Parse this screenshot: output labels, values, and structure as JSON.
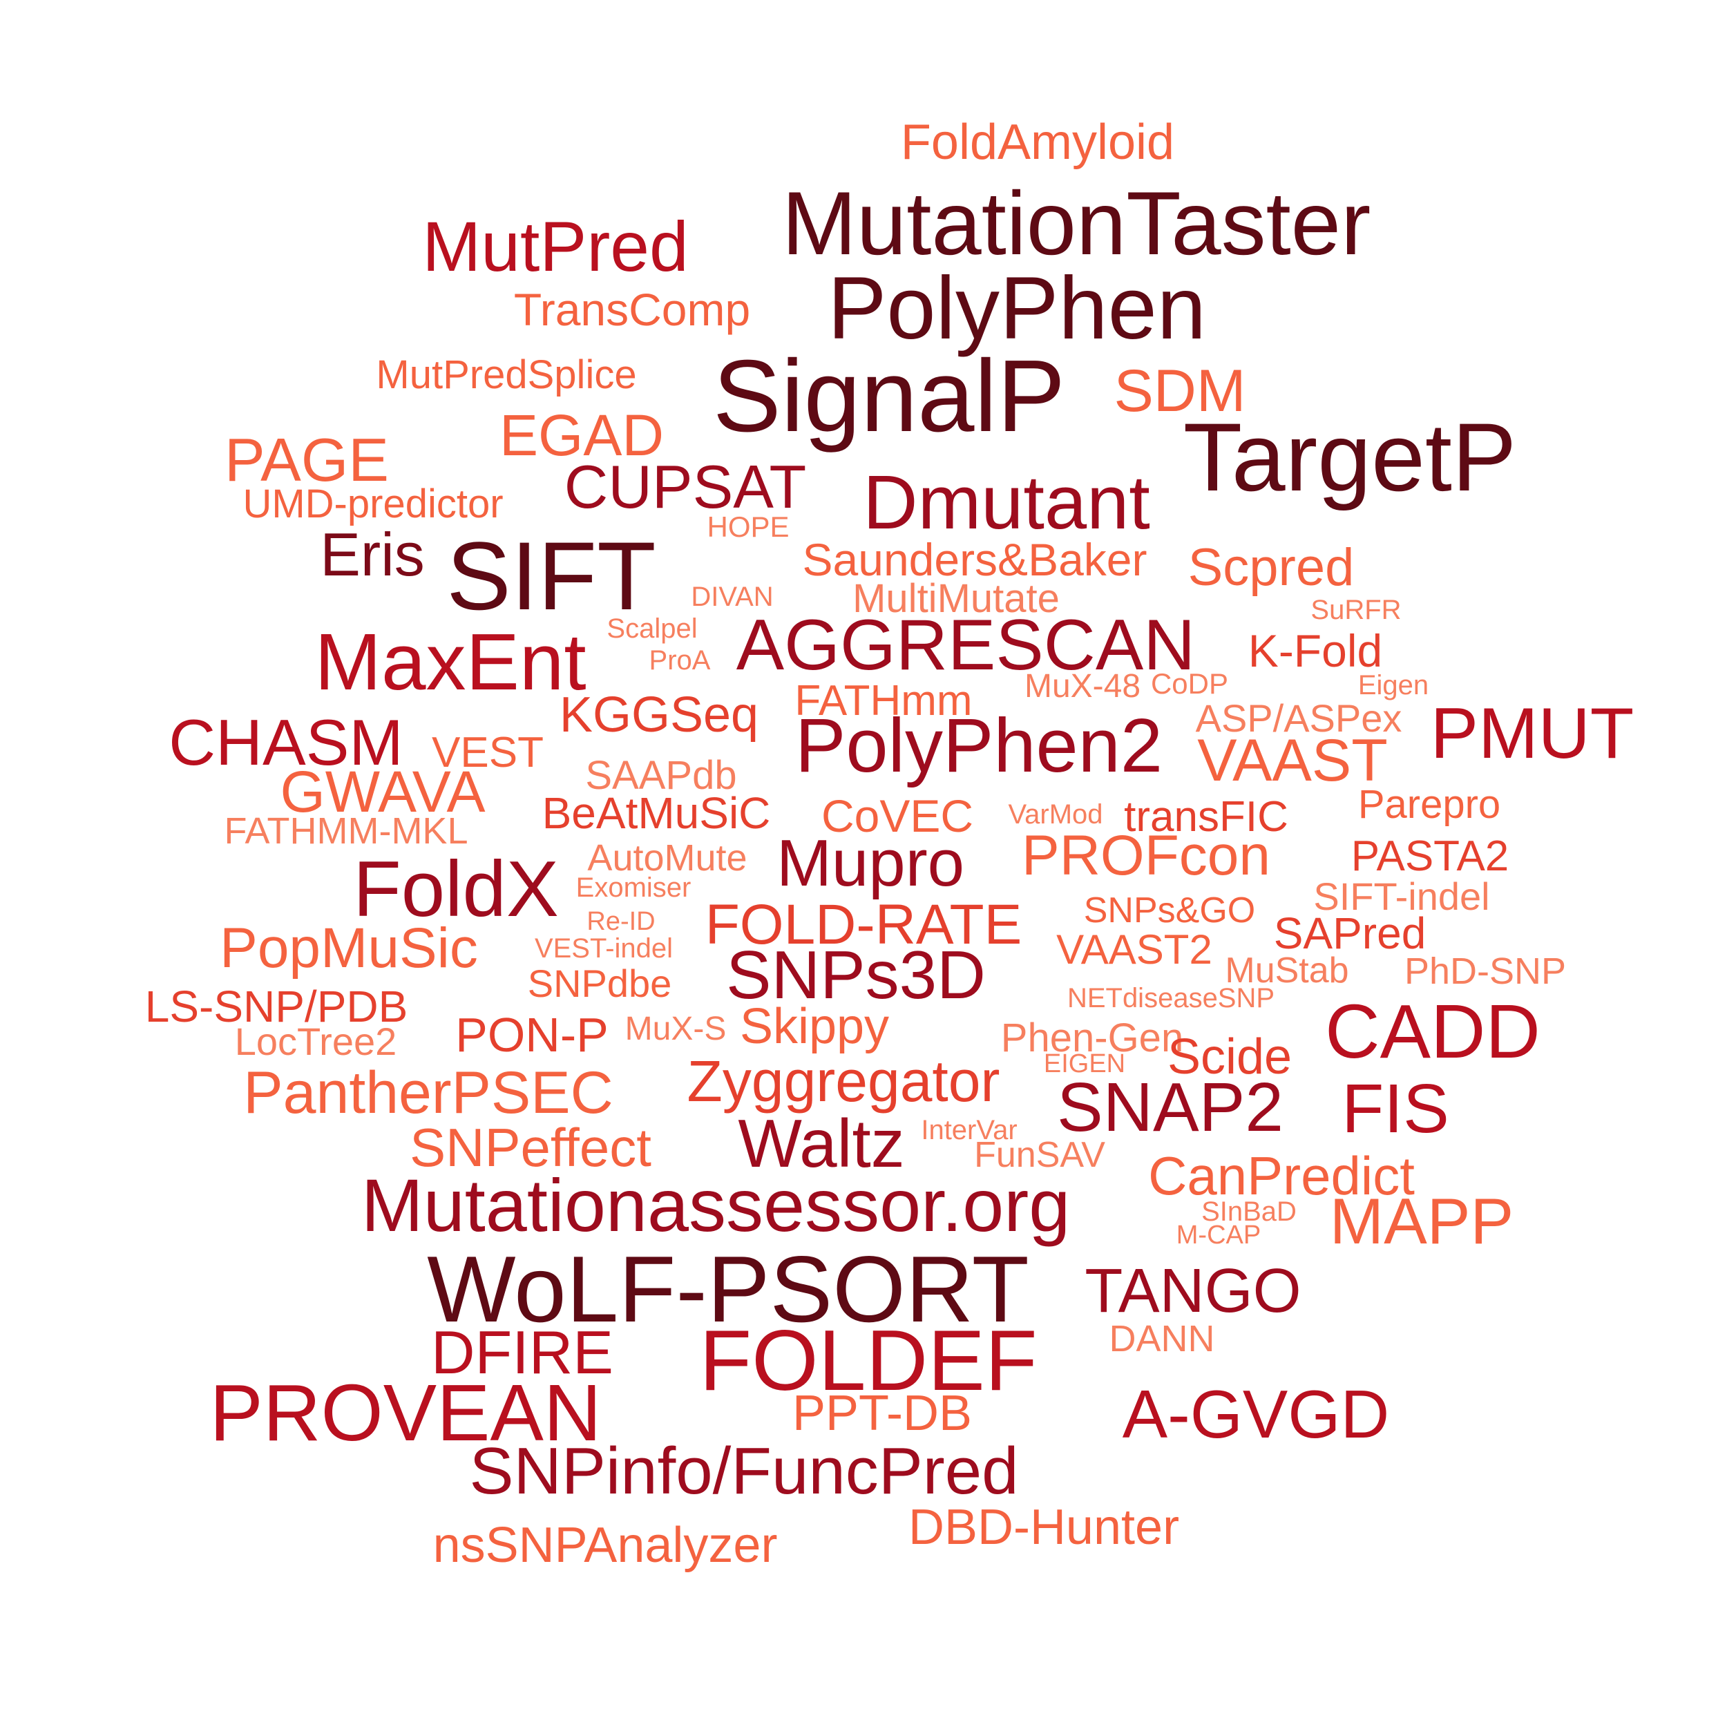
{
  "palette": {
    "darkest": "#5e0a14",
    "dark": "#9e0c1e",
    "medium": "#be1426",
    "mid_light": "#e5402d",
    "light": "#f4623f",
    "lightest": "#f67f5e"
  },
  "words": [
    {
      "id": "w0",
      "text": "FoldAmyloid",
      "color": "#f4623f"
    },
    {
      "id": "w1",
      "text": "MutationTaster",
      "color": "#5e0a14"
    },
    {
      "id": "w2",
      "text": "MutPred",
      "color": "#b9101f"
    },
    {
      "id": "w3",
      "text": "PolyPhen",
      "color": "#5e0a14"
    },
    {
      "id": "w4",
      "text": "TransComp",
      "color": "#f4623f"
    },
    {
      "id": "w5",
      "text": "SignalP",
      "color": "#5e0a14"
    },
    {
      "id": "w6",
      "text": "MutPredSplice",
      "color": "#f4623f"
    },
    {
      "id": "w7",
      "text": "SDM",
      "color": "#f4623f"
    },
    {
      "id": "w8",
      "text": "TargetP",
      "color": "#5e0a14"
    },
    {
      "id": "w9",
      "text": "EGAD",
      "color": "#f4623f"
    },
    {
      "id": "w10",
      "text": "PAGE",
      "color": "#f4623f"
    },
    {
      "id": "w11",
      "text": "CUPSAT",
      "color": "#9e0c1e"
    },
    {
      "id": "w12",
      "text": "Dmutant",
      "color": "#9e0c1e"
    },
    {
      "id": "w13",
      "text": "UMD-predictor",
      "color": "#f4623f"
    },
    {
      "id": "w14",
      "text": "HOPE",
      "color": "#f67f5e"
    },
    {
      "id": "w15",
      "text": "Eris",
      "color": "#7c0a18"
    },
    {
      "id": "w16",
      "text": "SIFT",
      "color": "#5e0a14"
    },
    {
      "id": "w17",
      "text": "Saunders&Baker",
      "color": "#f4623f"
    },
    {
      "id": "w18",
      "text": "Scpred",
      "color": "#f4623f"
    },
    {
      "id": "w19",
      "text": "DIVAN",
      "color": "#f67f5e"
    },
    {
      "id": "w20",
      "text": "MultiMutate",
      "color": "#f67f5e"
    },
    {
      "id": "w21",
      "text": "SuRFR",
      "color": "#f67f5e"
    },
    {
      "id": "w22",
      "text": "Scalpel",
      "color": "#f67f5e"
    },
    {
      "id": "w23",
      "text": "MaxEnt",
      "color": "#b9101f"
    },
    {
      "id": "w24",
      "text": "AGGRESCAN",
      "color": "#9e0c1e"
    },
    {
      "id": "w25",
      "text": "K-Fold",
      "color": "#e5402d"
    },
    {
      "id": "w26",
      "text": "ProA",
      "color": "#f67f5e"
    },
    {
      "id": "w27",
      "text": "MuX-48",
      "color": "#f67f5e"
    },
    {
      "id": "w28",
      "text": "CoDP",
      "color": "#f67f5e"
    },
    {
      "id": "w29",
      "text": "Eigen",
      "color": "#f67f5e"
    },
    {
      "id": "w30",
      "text": "KGGSeq",
      "color": "#e5402d"
    },
    {
      "id": "w31",
      "text": "FATHmm",
      "color": "#f4623f"
    },
    {
      "id": "w32",
      "text": "ASP/ASPex",
      "color": "#f67f5e"
    },
    {
      "id": "w33",
      "text": "PMUT",
      "color": "#b9101f"
    },
    {
      "id": "w34",
      "text": "CHASM",
      "color": "#b9101f"
    },
    {
      "id": "w35",
      "text": "VEST",
      "color": "#f4623f"
    },
    {
      "id": "w36",
      "text": "PolyPhen2",
      "color": "#9e0c1e"
    },
    {
      "id": "w37",
      "text": "VAAST",
      "color": "#f4623f"
    },
    {
      "id": "w38",
      "text": "SAAPdb",
      "color": "#f67f5e"
    },
    {
      "id": "w39",
      "text": "GWAVA",
      "color": "#f4623f"
    },
    {
      "id": "w40",
      "text": "BeAtMuSiC",
      "color": "#e5402d"
    },
    {
      "id": "w41",
      "text": "CoVEC",
      "color": "#f4623f"
    },
    {
      "id": "w42",
      "text": "VarMod",
      "color": "#f67f5e"
    },
    {
      "id": "w43",
      "text": "transFIC",
      "color": "#e5402d"
    },
    {
      "id": "w44",
      "text": "Parepro",
      "color": "#f4623f"
    },
    {
      "id": "w45",
      "text": "FATHMM-MKL",
      "color": "#f67f5e"
    },
    {
      "id": "w46",
      "text": "AutoMute",
      "color": "#f67f5e"
    },
    {
      "id": "w47",
      "text": "Mupro",
      "color": "#9e0c1e"
    },
    {
      "id": "w48",
      "text": "PROFcon",
      "color": "#f4623f"
    },
    {
      "id": "w49",
      "text": "PASTA2",
      "color": "#e5402d"
    },
    {
      "id": "w50",
      "text": "FoldX",
      "color": "#9e0c1e"
    },
    {
      "id": "w51",
      "text": "Exomiser",
      "color": "#f67f5e"
    },
    {
      "id": "w52",
      "text": "SIFT-indel",
      "color": "#f67f5e"
    },
    {
      "id": "w53",
      "text": "Re-ID",
      "color": "#f67f5e"
    },
    {
      "id": "w54",
      "text": "FOLD-RATE",
      "color": "#e5402d"
    },
    {
      "id": "w55",
      "text": "SNPs&GO",
      "color": "#f4623f"
    },
    {
      "id": "w56",
      "text": "SAPred",
      "color": "#e5402d"
    },
    {
      "id": "w57",
      "text": "PopMuSic",
      "color": "#f4623f"
    },
    {
      "id": "w58",
      "text": "VEST-indel",
      "color": "#f67f5e"
    },
    {
      "id": "w59",
      "text": "SNPs3D",
      "color": "#9e0c1e"
    },
    {
      "id": "w60",
      "text": "VAAST2",
      "color": "#f4623f"
    },
    {
      "id": "w61",
      "text": "MuStab",
      "color": "#f67f5e"
    },
    {
      "id": "w62",
      "text": "PhD-SNP",
      "color": "#f67f5e"
    },
    {
      "id": "w63",
      "text": "SNPdbe",
      "color": "#f4623f"
    },
    {
      "id": "w64",
      "text": "LS-SNP/PDB",
      "color": "#e5402d"
    },
    {
      "id": "w65",
      "text": "NETdiseaseSNP",
      "color": "#f67f5e"
    },
    {
      "id": "w66",
      "text": "CADD",
      "color": "#b9101f"
    },
    {
      "id": "w67",
      "text": "PON-P",
      "color": "#e5402d"
    },
    {
      "id": "w68",
      "text": "MuX-S",
      "color": "#f67f5e"
    },
    {
      "id": "w69",
      "text": "Skippy",
      "color": "#f4623f"
    },
    {
      "id": "w70",
      "text": "Phen-Gen",
      "color": "#f67f5e"
    },
    {
      "id": "w71",
      "text": "LocTree2",
      "color": "#f67f5e"
    },
    {
      "id": "w72",
      "text": "Scide",
      "color": "#e5402d"
    },
    {
      "id": "w73",
      "text": "EIGEN",
      "color": "#f67f5e"
    },
    {
      "id": "w74",
      "text": "Zyggregator",
      "color": "#e5402d"
    },
    {
      "id": "w75",
      "text": "PantherPSEC",
      "color": "#f4623f"
    },
    {
      "id": "w76",
      "text": "SNAP2",
      "color": "#9e0c1e"
    },
    {
      "id": "w77",
      "text": "FIS",
      "color": "#b9101f"
    },
    {
      "id": "w78",
      "text": "SNPeffect",
      "color": "#f4623f"
    },
    {
      "id": "w79",
      "text": "Waltz",
      "color": "#9e0c1e"
    },
    {
      "id": "w80",
      "text": "InterVar",
      "color": "#f67f5e"
    },
    {
      "id": "w81",
      "text": "FunSAV",
      "color": "#f67f5e"
    },
    {
      "id": "w82",
      "text": "CanPredict",
      "color": "#f4623f"
    },
    {
      "id": "w83",
      "text": "Mutationassessor.org",
      "color": "#9e0c1e"
    },
    {
      "id": "w84",
      "text": "SInBaD",
      "color": "#f67f5e"
    },
    {
      "id": "w85",
      "text": "MAPP",
      "color": "#f4623f"
    },
    {
      "id": "w86",
      "text": "M-CAP",
      "color": "#f67f5e"
    },
    {
      "id": "w87",
      "text": "WoLF-PSORT",
      "color": "#5e0a14"
    },
    {
      "id": "w88",
      "text": "TANGO",
      "color": "#9e0c1e"
    },
    {
      "id": "w89",
      "text": "DFIRE",
      "color": "#b9101f"
    },
    {
      "id": "w90",
      "text": "FOLDEF",
      "color": "#b9101f"
    },
    {
      "id": "w91",
      "text": "DANN",
      "color": "#f67f5e"
    },
    {
      "id": "w92",
      "text": "PROVEAN",
      "color": "#b9101f"
    },
    {
      "id": "w93",
      "text": "PPT-DB",
      "color": "#f4623f"
    },
    {
      "id": "w94",
      "text": "A-GVGD",
      "color": "#b9101f"
    },
    {
      "id": "w95",
      "text": "SNPinfo/FuncPred",
      "color": "#9e0c1e"
    },
    {
      "id": "w96",
      "text": "DBD-Hunter",
      "color": "#f4623f"
    },
    {
      "id": "w97",
      "text": "nsSNPAnalyzer",
      "color": "#f4623f"
    }
  ]
}
